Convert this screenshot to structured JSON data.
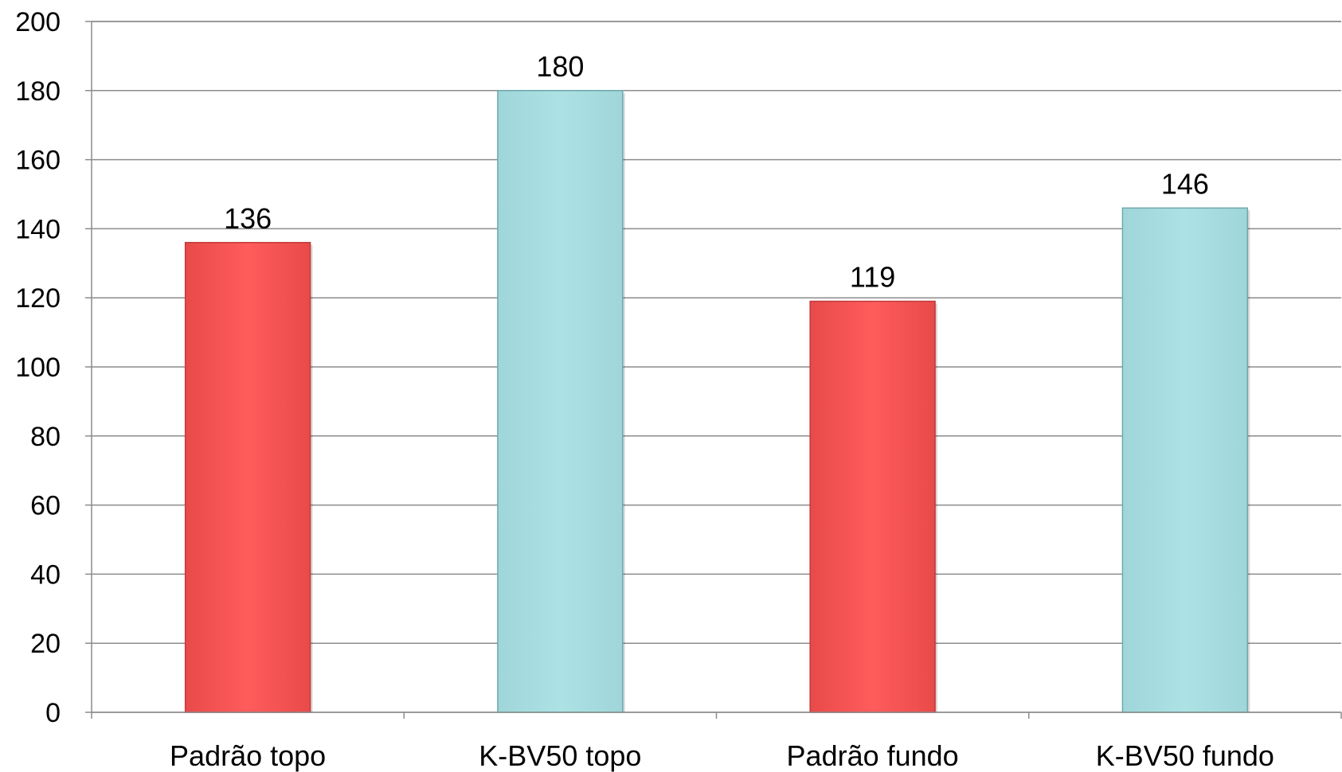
{
  "chart_data": {
    "type": "bar",
    "categories": [
      "Padrão topo",
      "K-BV50 topo",
      "Padrão fundo",
      "K-BV50 fundo"
    ],
    "values": [
      136,
      180,
      119,
      146
    ],
    "data_labels": [
      "136",
      "180",
      "119",
      "146"
    ],
    "bar_colors": [
      "#ff5a5a",
      "#a9e0e3",
      "#ff5a5a",
      "#a9e0e3"
    ],
    "bar_edge_colors": [
      "#c23a3a",
      "#6fa8ac",
      "#c23a3a",
      "#6fa8ac"
    ],
    "ylim": [
      0,
      200
    ],
    "yticks": [
      0,
      20,
      40,
      60,
      80,
      100,
      120,
      140,
      160,
      180,
      200
    ],
    "ytick_labels": [
      "0",
      "20",
      "40",
      "60",
      "80",
      "100",
      "120",
      "140",
      "160",
      "180",
      "200"
    ],
    "grid": true,
    "legend": "none",
    "title": "",
    "xlabel": "",
    "ylabel": ""
  }
}
